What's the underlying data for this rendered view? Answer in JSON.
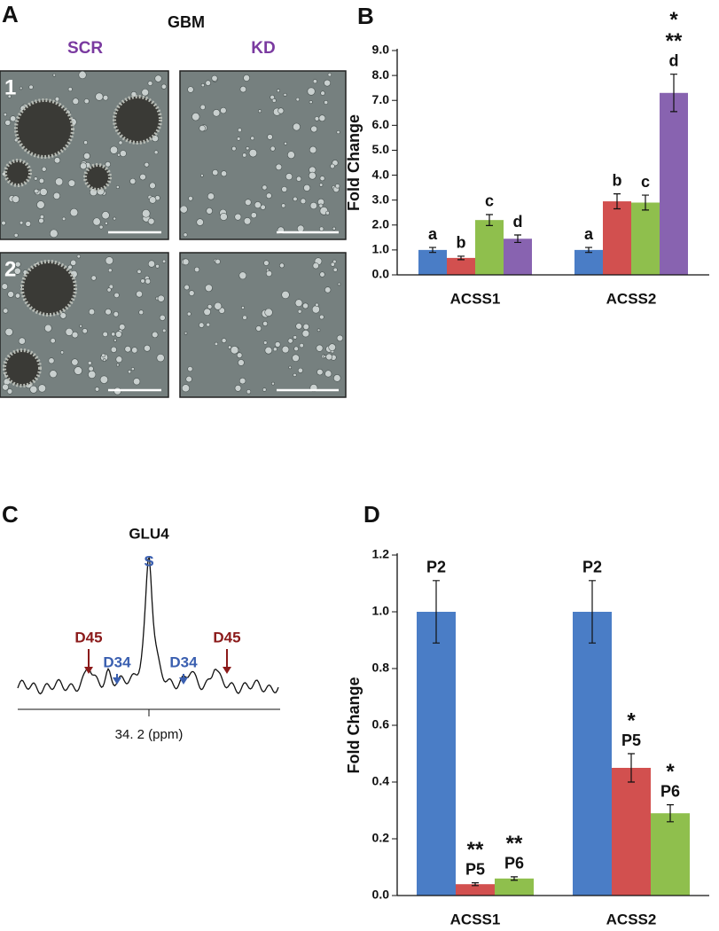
{
  "panels": [
    "A",
    "B",
    "C",
    "D"
  ],
  "micrographs": {
    "title": "GBM",
    "columns": [
      "SCR",
      "KD"
    ],
    "rows": [
      "1",
      "2"
    ]
  },
  "spectrum": {
    "title": "GLU4",
    "center_peak": "S",
    "left_peaks": [
      "D45",
      "D34"
    ],
    "right_peaks": [
      "D34",
      "D45"
    ],
    "xlabel": "34. 2 (ppm)"
  },
  "chart_data": [
    {
      "type": "bar",
      "ylabel": "Fold Change",
      "categories": [
        "ACSS1",
        "ACSS2"
      ],
      "ylim": [
        0,
        9
      ],
      "yticks": [
        {
          "value": 0,
          "label": "0.0"
        },
        {
          "value": 1,
          "label": "1.0"
        },
        {
          "value": 2,
          "label": "2.0"
        },
        {
          "value": 3,
          "label": "3.0"
        },
        {
          "value": 4,
          "label": "4.0"
        },
        {
          "value": 5,
          "label": "5.0"
        },
        {
          "value": 6,
          "label": "6.0"
        },
        {
          "value": 7,
          "label": "7.0"
        },
        {
          "value": 8,
          "label": "8.0"
        },
        {
          "value": 9,
          "label": "9.0"
        }
      ],
      "series": [
        {
          "color": "#4a7dc6",
          "values": [
            1.0,
            1.0
          ],
          "errors": [
            0.1,
            0.1
          ],
          "labels": [
            "a",
            "a"
          ]
        },
        {
          "color": "#d2504f",
          "values": [
            0.68,
            2.95
          ],
          "errors": [
            0.07,
            0.3
          ],
          "labels": [
            "b",
            "b"
          ]
        },
        {
          "color": "#8fbf4d",
          "values": [
            2.2,
            2.9
          ],
          "errors": [
            0.22,
            0.3
          ],
          "labels": [
            "c",
            "c"
          ]
        },
        {
          "color": "#8863b0",
          "values": [
            1.45,
            7.3
          ],
          "errors": [
            0.15,
            0.75
          ],
          "labels": [
            "d",
            "d"
          ],
          "stars": [
            null,
            [
              "*",
              "**"
            ]
          ]
        }
      ]
    },
    {
      "type": "bar",
      "ylabel": "Fold Change",
      "categories": [
        "ACSS1",
        "ACSS2"
      ],
      "ylim": [
        0,
        1.2
      ],
      "yticks": [
        {
          "value": 0,
          "label": "0.0"
        },
        {
          "value": 0.2,
          "label": "0.2"
        },
        {
          "value": 0.4,
          "label": "0.4"
        },
        {
          "value": 0.6,
          "label": "0.6"
        },
        {
          "value": 0.8,
          "label": "0.8"
        },
        {
          "value": 1.0,
          "label": "1.0"
        },
        {
          "value": 1.2,
          "label": "1.2"
        }
      ],
      "series": [
        {
          "color": "#4a7dc6",
          "values": [
            1.0,
            1.0
          ],
          "errors": [
            0.11,
            0.11
          ],
          "labels": [
            "P2",
            "P2"
          ]
        },
        {
          "color": "#d2504f",
          "values": [
            0.04,
            0.45
          ],
          "errors": [
            0.005,
            0.05
          ],
          "labels": [
            "P5",
            "P5"
          ],
          "stars": [
            [
              "**"
            ],
            [
              "*"
            ]
          ]
        },
        {
          "color": "#8fbf4d",
          "values": [
            0.06,
            0.29
          ],
          "errors": [
            0.006,
            0.03
          ],
          "labels": [
            "P6",
            "P6"
          ],
          "stars": [
            [
              "**"
            ],
            [
              "*"
            ]
          ]
        }
      ]
    }
  ]
}
